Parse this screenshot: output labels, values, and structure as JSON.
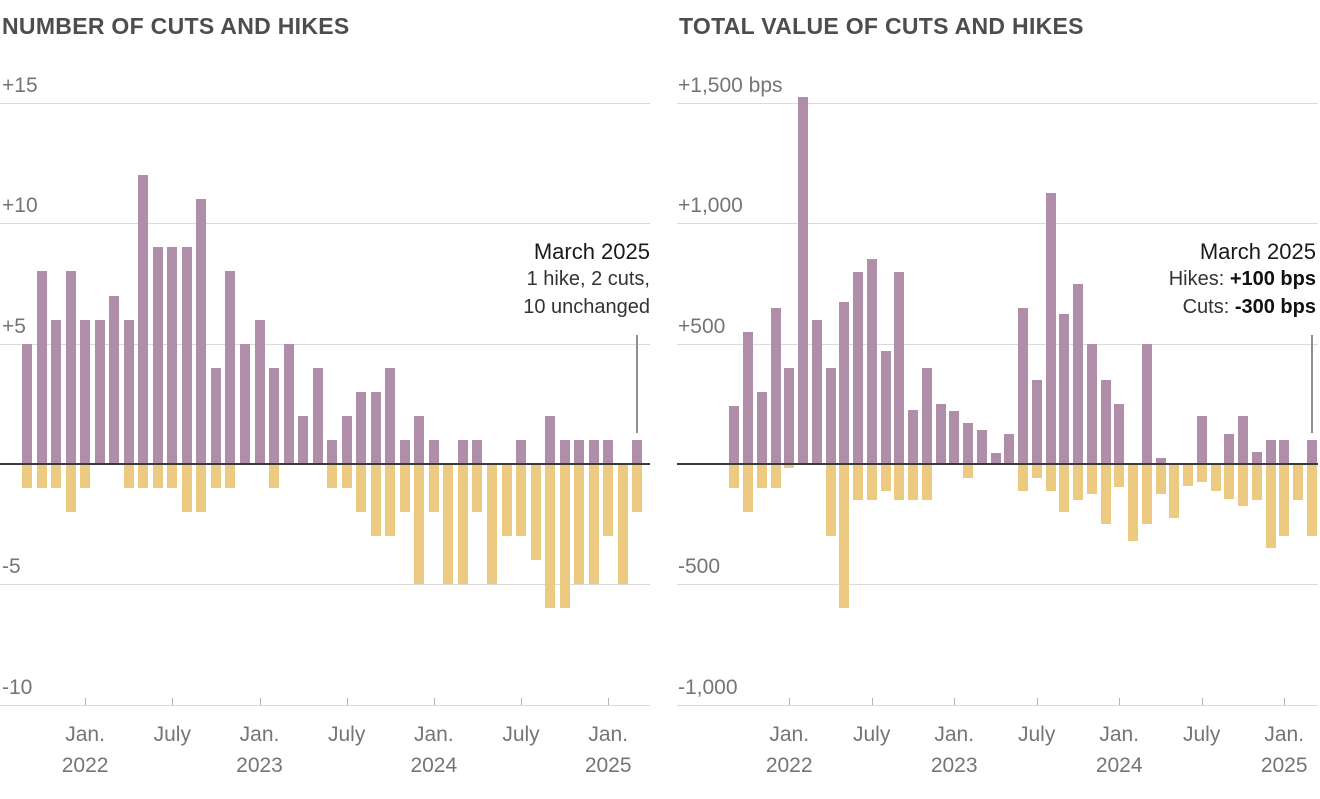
{
  "colors": {
    "hike_bar": "#b08da9",
    "cut_bar": "#ecca81",
    "zero_line": "#3a3a3a",
    "gridline": "#dadada",
    "title_text": "#4d4d4d",
    "axis_text": "#757575",
    "annotation_text": "#1d1d1d",
    "pointer_line": "#8f8f8f",
    "background": "#ffffff"
  },
  "chart_data": [
    {
      "type": "bar",
      "title": "NUMBER OF CUTS AND HIKES",
      "ylabel": "",
      "xlabel": "",
      "ylim": [
        -10,
        15
      ],
      "grid": true,
      "legend": false,
      "x": [
        "Sep 2021",
        "Oct 2021",
        "Nov 2021",
        "Dec 2021",
        "Jan 2022",
        "Feb 2022",
        "Mar 2022",
        "Apr 2022",
        "May 2022",
        "Jun 2022",
        "Jul 2022",
        "Aug 2022",
        "Sep 2022",
        "Oct 2022",
        "Nov 2022",
        "Dec 2022",
        "Jan 2023",
        "Feb 2023",
        "Mar 2023",
        "Apr 2023",
        "May 2023",
        "Jun 2023",
        "Jul 2023",
        "Aug 2023",
        "Sep 2023",
        "Oct 2023",
        "Nov 2023",
        "Dec 2023",
        "Jan 2024",
        "Feb 2024",
        "Mar 2024",
        "Apr 2024",
        "May 2024",
        "Jun 2024",
        "Jul 2024",
        "Aug 2024",
        "Sep 2024",
        "Oct 2024",
        "Nov 2024",
        "Dec 2024",
        "Jan 2025",
        "Feb 2025",
        "Mar 2025"
      ],
      "series": [
        {
          "name": "hikes",
          "values": [
            5,
            8,
            6,
            8,
            6,
            6,
            7,
            6,
            12,
            9,
            9,
            9,
            11,
            4,
            8,
            5,
            6,
            4,
            5,
            2,
            4,
            1,
            2,
            3,
            3,
            4,
            1,
            2,
            1,
            0,
            1,
            1,
            0,
            0,
            1,
            0,
            2,
            1,
            1,
            1,
            1,
            0,
            1
          ]
        },
        {
          "name": "cuts",
          "values": [
            -1,
            -1,
            -1,
            -2,
            -1,
            0,
            0,
            -1,
            -1,
            -1,
            -1,
            -2,
            -2,
            -1,
            -1,
            0,
            0,
            -1,
            0,
            0,
            0,
            -1,
            -1,
            -2,
            -3,
            -3,
            -2,
            -5,
            -2,
            -5,
            -5,
            -2,
            -5,
            -3,
            -3,
            -4,
            -6,
            -6,
            -5,
            -5,
            -3,
            -5,
            -2
          ]
        }
      ],
      "y_ticks": [
        {
          "label": "+15",
          "value": 15
        },
        {
          "label": "+10",
          "value": 10
        },
        {
          "label": "+5",
          "value": 5
        },
        {
          "label": "-5",
          "value": -5
        },
        {
          "label": "-10",
          "value": -10
        }
      ],
      "x_ticks": [
        {
          "label": "Jan.",
          "year": "2022",
          "month_index": 4
        },
        {
          "label": "July",
          "year": "",
          "month_index": 10
        },
        {
          "label": "Jan.",
          "year": "2023",
          "month_index": 16
        },
        {
          "label": "July",
          "year": "",
          "month_index": 22
        },
        {
          "label": "Jan.",
          "year": "2024",
          "month_index": 28
        },
        {
          "label": "July",
          "year": "",
          "month_index": 34
        },
        {
          "label": "Jan.",
          "year": "2025",
          "month_index": 40
        }
      ],
      "annotation": {
        "title": "March 2025",
        "lines": [
          "1 hike, 2 cuts,",
          "10 unchanged"
        ],
        "pointer_month_index": 42
      }
    },
    {
      "type": "bar",
      "title": "TOTAL VALUE OF CUTS AND HIKES",
      "ylabel": "bps",
      "xlabel": "",
      "ylim": [
        -1000,
        1500
      ],
      "grid": true,
      "legend": false,
      "x": [
        "Sep 2021",
        "Oct 2021",
        "Nov 2021",
        "Dec 2021",
        "Jan 2022",
        "Feb 2022",
        "Mar 2022",
        "Apr 2022",
        "May 2022",
        "Jun 2022",
        "Jul 2022",
        "Aug 2022",
        "Sep 2022",
        "Oct 2022",
        "Nov 2022",
        "Dec 2022",
        "Jan 2023",
        "Feb 2023",
        "Mar 2023",
        "Apr 2023",
        "May 2023",
        "Jun 2023",
        "Jul 2023",
        "Aug 2023",
        "Sep 2023",
        "Oct 2023",
        "Nov 2023",
        "Dec 2023",
        "Jan 2024",
        "Feb 2024",
        "Mar 2024",
        "Apr 2024",
        "May 2024",
        "Jun 2024",
        "Jul 2024",
        "Aug 2024",
        "Sep 2024",
        "Oct 2024",
        "Nov 2024",
        "Dec 2024",
        "Jan 2025",
        "Feb 2025",
        "Mar 2025"
      ],
      "series": [
        {
          "name": "hikes_bps",
          "values": [
            240,
            550,
            300,
            650,
            400,
            1525,
            600,
            400,
            675,
            800,
            850,
            470,
            800,
            225,
            400,
            250,
            220,
            170,
            140,
            45,
            125,
            650,
            350,
            1125,
            625,
            750,
            500,
            350,
            250,
            0,
            500,
            25,
            0,
            0,
            200,
            0,
            125,
            200,
            50,
            100,
            100,
            0,
            100
          ]
        },
        {
          "name": "cuts_bps",
          "values": [
            -100,
            -200,
            -100,
            -100,
            -15,
            0,
            0,
            -300,
            -600,
            -150,
            -150,
            -110,
            -150,
            -150,
            -150,
            0,
            0,
            -60,
            0,
            0,
            0,
            -110,
            -60,
            -110,
            -200,
            -150,
            -125,
            -250,
            -95,
            -320,
            -250,
            -125,
            -225,
            -90,
            -75,
            -110,
            -145,
            -175,
            -150,
            -350,
            -300,
            -150,
            -300
          ]
        }
      ],
      "y_ticks": [
        {
          "label": "+1,500 bps",
          "value": 1500
        },
        {
          "label": "+1,000",
          "value": 1000
        },
        {
          "label": "+500",
          "value": 500
        },
        {
          "label": "-500",
          "value": -500
        },
        {
          "label": "-1,000",
          "value": -1000
        }
      ],
      "x_ticks": [
        {
          "label": "Jan.",
          "year": "2022",
          "month_index": 4
        },
        {
          "label": "July",
          "year": "",
          "month_index": 10
        },
        {
          "label": "Jan.",
          "year": "2023",
          "month_index": 16
        },
        {
          "label": "July",
          "year": "",
          "month_index": 22
        },
        {
          "label": "Jan.",
          "year": "2024",
          "month_index": 28
        },
        {
          "label": "July",
          "year": "",
          "month_index": 34
        },
        {
          "label": "Jan.",
          "year": "2025",
          "month_index": 40
        }
      ],
      "annotation": {
        "title": "March 2025",
        "rows": [
          {
            "prefix": "Hikes: ",
            "value": "+100 bps"
          },
          {
            "prefix": "Cuts: ",
            "value": "-300 bps"
          }
        ],
        "pointer_month_index": 42
      }
    }
  ]
}
